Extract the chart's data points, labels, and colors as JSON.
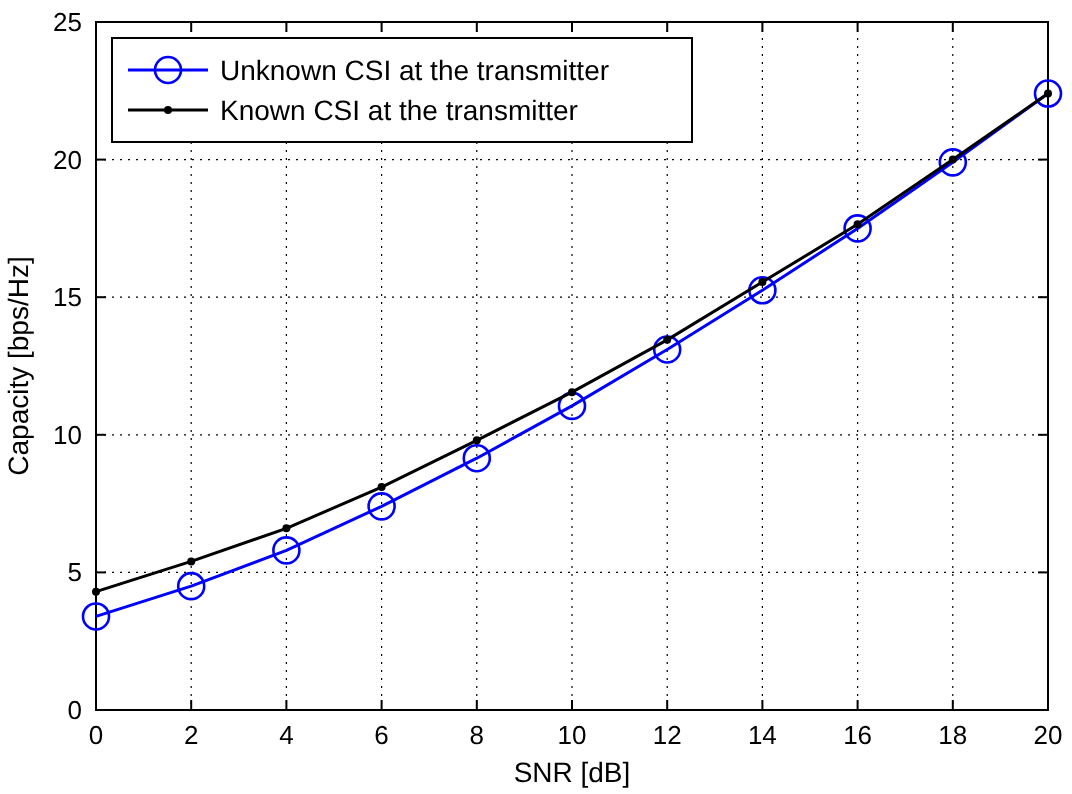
{
  "chart_data": {
    "type": "line",
    "xlabel": "SNR [dB]",
    "ylabel": "Capacity [bps/Hz]",
    "x": [
      0,
      2,
      4,
      6,
      8,
      10,
      12,
      14,
      16,
      18,
      20
    ],
    "xlim": [
      0,
      20
    ],
    "xticks": [
      0,
      2,
      4,
      6,
      8,
      10,
      12,
      14,
      16,
      18,
      20
    ],
    "ylim": [
      0,
      25
    ],
    "yticks": [
      0,
      5,
      10,
      15,
      20,
      25
    ],
    "grid": true,
    "legend": "top left",
    "line_style": "solid",
    "series": [
      {
        "name": "Unknown CSI at the transmitter",
        "color": "#0000ff",
        "marker": "circle",
        "values": [
          3.4,
          4.5,
          5.8,
          7.4,
          9.15,
          11.05,
          13.1,
          15.25,
          17.5,
          19.9,
          22.4
        ]
      },
      {
        "name": "Known CSI at the transmitter",
        "color": "#000000",
        "marker": "dot",
        "values": [
          4.3,
          5.4,
          6.6,
          8.1,
          9.8,
          11.55,
          13.45,
          15.55,
          17.65,
          20.0,
          22.4
        ]
      }
    ]
  }
}
